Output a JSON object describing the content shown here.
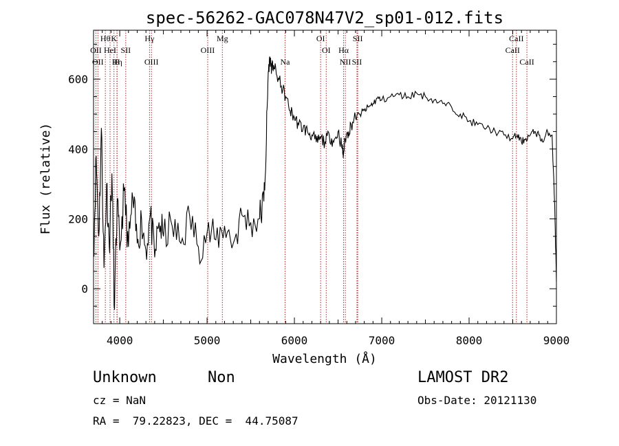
{
  "chart_data": {
    "type": "line",
    "title": "spec-56262-GAC078N47V2_sp01-012.fits",
    "xlabel": "Wavelength (Å)",
    "ylabel": "Flux (relative)",
    "xlim": [
      3700,
      9000
    ],
    "ylim": [
      -100,
      740
    ],
    "x_ticks": [
      {
        "value": 4000,
        "label": "4000"
      },
      {
        "value": 5000,
        "label": "5000"
      },
      {
        "value": 6000,
        "label": "6000"
      },
      {
        "value": 7000,
        "label": "7000"
      },
      {
        "value": 8000,
        "label": "8000"
      },
      {
        "value": 9000,
        "label": "9000"
      }
    ],
    "y_ticks": [
      {
        "value": 0,
        "label": "0"
      },
      {
        "value": 200,
        "label": "200"
      },
      {
        "value": 400,
        "label": "400"
      },
      {
        "value": 600,
        "label": "600"
      }
    ],
    "line_color": "#000000",
    "marker_color": "#b22222",
    "spectrum": {
      "x": [
        3700,
        3730,
        3760,
        3790,
        3820,
        3850,
        3880,
        3910,
        3940,
        3970,
        4000,
        4050,
        4100,
        4150,
        4200,
        4250,
        4300,
        4350,
        4400,
        4450,
        4500,
        4600,
        4700,
        4800,
        4900,
        5000,
        5100,
        5200,
        5300,
        5400,
        5500,
        5600,
        5650,
        5680,
        5700,
        5720,
        5740,
        5760,
        5800,
        5850,
        5900,
        5950,
        6000,
        6050,
        6100,
        6150,
        6200,
        6250,
        6300,
        6350,
        6400,
        6450,
        6500,
        6550,
        6560,
        6580,
        6620,
        6650,
        6700,
        6750,
        6800,
        6850,
        6900,
        6950,
        7000,
        7100,
        7200,
        7300,
        7400,
        7500,
        7600,
        7700,
        7800,
        7900,
        8000,
        8100,
        8200,
        8300,
        8400,
        8500,
        8550,
        8600,
        8650,
        8700,
        8750,
        8800,
        8850,
        8900,
        8950,
        8980,
        9000
      ],
      "y": [
        100,
        380,
        150,
        460,
        60,
        300,
        120,
        330,
        -60,
        250,
        110,
        280,
        120,
        260,
        130,
        200,
        110,
        210,
        90,
        190,
        150,
        180,
        130,
        210,
        120,
        160,
        140,
        180,
        130,
        210,
        190,
        200,
        250,
        430,
        620,
        660,
        630,
        640,
        610,
        580,
        550,
        510,
        490,
        470,
        460,
        450,
        440,
        420,
        430,
        420,
        440,
        420,
        450,
        400,
        380,
        430,
        450,
        470,
        490,
        500,
        510,
        520,
        530,
        545,
        540,
        550,
        555,
        550,
        560,
        550,
        540,
        530,
        520,
        500,
        480,
        470,
        460,
        450,
        440,
        430,
        440,
        420,
        430,
        440,
        450,
        440,
        420,
        450,
        440,
        240,
        20
      ]
    },
    "line_markers_top": [
      {
        "x": 3835,
        "label": "Hθ"
      },
      {
        "x": 3934,
        "label": "K"
      },
      {
        "x": 4341,
        "label": "Hγ"
      },
      {
        "x": 5175,
        "label": "Mg"
      },
      {
        "x": 6300,
        "label": "OI"
      },
      {
        "x": 6725,
        "label": "SII"
      },
      {
        "x": 8542,
        "label": "CaII"
      }
    ],
    "line_markers_mid": [
      {
        "x": 3727,
        "label": "OII"
      },
      {
        "x": 3889,
        "label": "HeI"
      },
      {
        "x": 4069,
        "label": "SII"
      },
      {
        "x": 5007,
        "label": "OIII"
      },
      {
        "x": 6364,
        "label": "OI"
      },
      {
        "x": 6563,
        "label": "Hα"
      },
      {
        "x": 8498,
        "label": "CaII"
      }
    ],
    "line_markers_low": [
      {
        "x": 3750,
        "label": "OII"
      },
      {
        "x": 3970,
        "label": "Hη"
      },
      {
        "x": 3968,
        "label": "H"
      },
      {
        "x": 4363,
        "label": "OIII"
      },
      {
        "x": 5893,
        "label": "Na"
      },
      {
        "x": 6583,
        "label": "NII"
      },
      {
        "x": 6716,
        "label": "SII"
      },
      {
        "x": 8662,
        "label": "CaII"
      }
    ]
  },
  "info": {
    "class": "Unknown",
    "subclass": "Non",
    "survey": "LAMOST DR2",
    "cz": "cz = NaN",
    "obs_date": "Obs-Date: 20121130",
    "coords": "RA =  79.22823, DEC =  44.75087"
  }
}
